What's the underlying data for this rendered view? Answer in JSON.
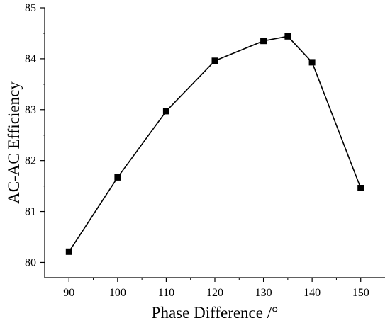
{
  "chart_data": {
    "type": "line",
    "title": "",
    "xlabel": "Phase Difference /°",
    "ylabel": "AC-AC Efficiency",
    "xlim": [
      85,
      155
    ],
    "ylim": [
      79.7,
      85
    ],
    "xticks": [
      90,
      100,
      110,
      120,
      130,
      140,
      150
    ],
    "yticks": [
      80,
      81,
      82,
      83,
      84,
      85
    ],
    "x_tick_labels": [
      "90",
      "100",
      "110",
      "120",
      "130",
      "140",
      "150"
    ],
    "y_tick_labels": [
      "80",
      "81",
      "82",
      "83",
      "84",
      "85"
    ],
    "grid": false,
    "marker": "square",
    "series": [
      {
        "x": [
          90,
          100,
          110,
          120,
          130,
          135,
          140,
          150
        ],
        "y": [
          80.21,
          81.67,
          82.97,
          83.96,
          84.35,
          84.44,
          83.93,
          81.46
        ]
      }
    ]
  }
}
